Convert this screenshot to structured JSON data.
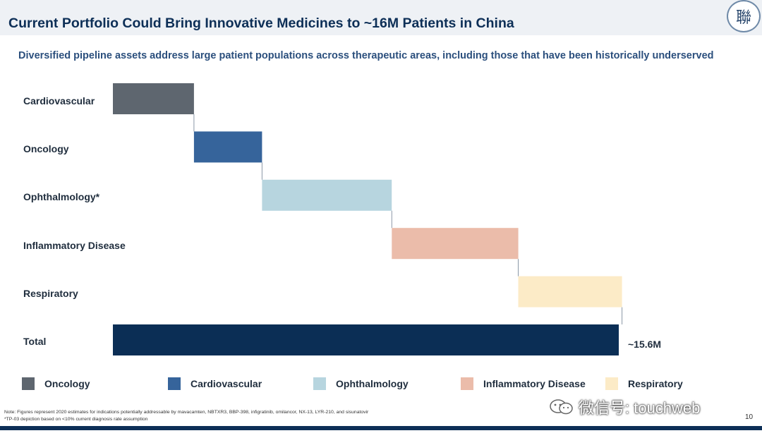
{
  "header": {
    "title": "Current Portfolio Could Bring Innovative Medicines to ~16M Patients in China",
    "logo_text": "聯"
  },
  "subtitle": "Diversified pipeline assets address large patient populations across therapeutic areas, including those that have been historically underserved",
  "chart_data": {
    "type": "bar",
    "subtype": "waterfall",
    "title": "",
    "categories": [
      "Cardiovascular",
      "Oncology",
      "Ophthalmology*",
      "Inflammatory Disease",
      "Respiratory",
      "Total"
    ],
    "values": [
      2.5,
      2.1,
      4.0,
      3.9,
      3.2,
      15.6
    ],
    "value_unit": "M patients",
    "colors": [
      "#5e666f",
      "#36649b",
      "#b7d5df",
      "#ebbcaa",
      "#fcebc7",
      "#0b2e55"
    ],
    "xlim": [
      0,
      15.6
    ],
    "total_label": "~15.6M",
    "legend": [
      {
        "label": "Oncology",
        "color": "#5e666f"
      },
      {
        "label": "Cardiovascular",
        "color": "#36649b"
      },
      {
        "label": "Ophthalmology",
        "color": "#b7d5df"
      },
      {
        "label": "Inflammatory Disease",
        "color": "#ebbcaa"
      },
      {
        "label": "Respiratory",
        "color": "#fcebc7"
      }
    ]
  },
  "footnotes": {
    "note1": "Note: Figures represent 2020 estimates for indications potentially addressable by mavacamten, NBTXR3, BBP-398, infigratinib, omilancor, NX-13, LYR-210, and sisunatovir",
    "note2": "*TP-03 depiction based on <10% current diagnosis rate assumption"
  },
  "watermark": {
    "text": "微信号: touchweb"
  },
  "page_number": "10"
}
